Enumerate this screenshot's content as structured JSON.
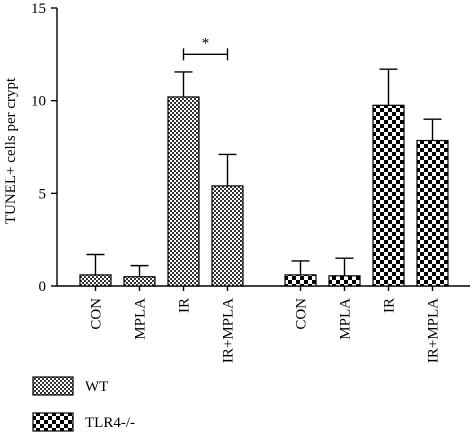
{
  "chart_data": {
    "type": "bar",
    "title": "",
    "xlabel": "",
    "ylabel": "TUNEL+ cells per crypt",
    "ylim": [
      0,
      15
    ],
    "yticks": [
      0,
      5,
      10,
      15
    ],
    "grid": false,
    "legend_position": "bottom-left",
    "series": [
      {
        "name": "WT",
        "pattern": "fine-checker",
        "categories": [
          "CON",
          "MPLA",
          "IR",
          "IR+MPLA"
        ],
        "values": [
          0.6,
          0.5,
          10.2,
          5.4
        ],
        "errors": [
          1.1,
          0.6,
          1.35,
          1.7
        ]
      },
      {
        "name": "TLR4-/-",
        "pattern": "coarse-checker",
        "categories": [
          "CON",
          "MPLA",
          "IR",
          "IR+MPLA"
        ],
        "values": [
          0.6,
          0.55,
          9.75,
          7.85
        ],
        "errors": [
          0.75,
          0.95,
          1.95,
          1.15
        ]
      }
    ],
    "annotations": [
      {
        "text": "*",
        "series": "WT",
        "between": [
          "IR",
          "IR+MPLA"
        ],
        "y": 12.5
      }
    ]
  }
}
